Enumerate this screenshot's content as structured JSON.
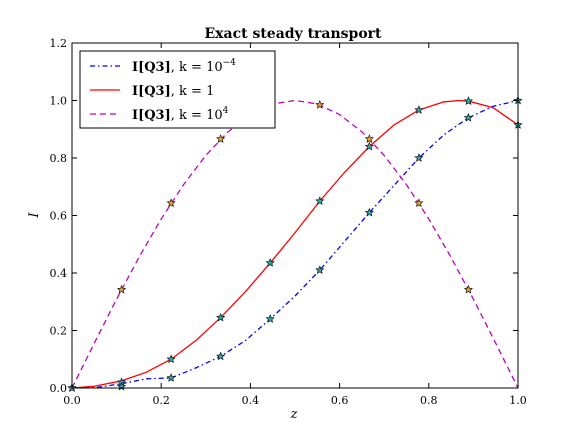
{
  "chart_data": {
    "type": "line",
    "title": "Exact steady transport",
    "xlabel": "z",
    "ylabel": "I",
    "xlim": [
      0.0,
      1.0
    ],
    "ylim": [
      0.0,
      1.2
    ],
    "xticks": [
      "0.0",
      "0.2",
      "0.4",
      "0.6",
      "0.8",
      "1.0"
    ],
    "yticks": [
      "0.0",
      "0.2",
      "0.4",
      "0.6",
      "0.8",
      "1.0",
      "1.2"
    ],
    "legend_position": "top-left",
    "grid": false,
    "series": [
      {
        "name": "I[Q3], k = 10^-4",
        "legend": {
          "bold": "I[Q3]",
          "rest": ", k = 10",
          "sup": "−4"
        },
        "color": "#0000ff",
        "style": "dashdot",
        "x": [
          0.0,
          0.0556,
          0.1111,
          0.1667,
          0.2222,
          0.2778,
          0.3333,
          0.3889,
          0.4444,
          0.5,
          0.5556,
          0.6111,
          0.6667,
          0.7222,
          0.7778,
          0.8333,
          0.8889,
          0.9444,
          1.0
        ],
        "y": [
          0.0,
          0.002,
          0.015,
          0.032,
          0.035,
          0.07,
          0.11,
          0.165,
          0.24,
          0.32,
          0.41,
          0.51,
          0.61,
          0.705,
          0.8,
          0.88,
          0.94,
          0.98,
          1.0
        ]
      },
      {
        "name": "I[Q3], k = 1",
        "legend": {
          "bold": "I[Q3]",
          "rest": ", k = 1",
          "sup": ""
        },
        "color": "#ff0000",
        "style": "solid",
        "x": [
          0.0,
          0.05,
          0.1111,
          0.1667,
          0.2222,
          0.2778,
          0.3333,
          0.3889,
          0.4444,
          0.5,
          0.5556,
          0.6111,
          0.6667,
          0.7222,
          0.7778,
          0.8333,
          0.8667,
          0.8889,
          0.9444,
          1.0
        ],
        "y": [
          0.0,
          0.006,
          0.025,
          0.055,
          0.1,
          0.165,
          0.245,
          0.335,
          0.435,
          0.54,
          0.65,
          0.75,
          0.84,
          0.915,
          0.967,
          0.995,
          1.0,
          0.998,
          0.975,
          0.915
        ]
      },
      {
        "name": "I[Q3], k = 10^4",
        "legend": {
          "bold": "I[Q3]",
          "rest": ", k = 10",
          "sup": "4"
        },
        "color": "#bf00bf",
        "style": "dashed",
        "x": [
          0.0,
          0.05,
          0.1,
          0.15,
          0.2,
          0.25,
          0.3,
          0.35,
          0.4,
          0.45,
          0.5,
          0.55,
          0.6,
          0.65,
          0.7,
          0.75,
          0.8,
          0.85,
          0.9,
          0.95,
          1.0
        ],
        "y": [
          0.0,
          0.156,
          0.309,
          0.454,
          0.588,
          0.707,
          0.809,
          0.891,
          0.951,
          0.988,
          1.0,
          0.988,
          0.951,
          0.891,
          0.809,
          0.707,
          0.588,
          0.454,
          0.309,
          0.156,
          0.0
        ]
      }
    ],
    "markers": [
      {
        "name": "k = 10^4 stars",
        "fill": "#e0a040",
        "x": [
          0.0,
          0.1111,
          0.2222,
          0.3333,
          0.4444,
          0.5556,
          0.6667,
          0.7778,
          0.8889
        ],
        "y": [
          0.0,
          0.342,
          0.643,
          0.866,
          0.985,
          0.985,
          0.866,
          0.643,
          0.342
        ]
      },
      {
        "name": "k = 1 stars",
        "fill": "#2fa4a4",
        "x": [
          0.0,
          0.1111,
          0.2222,
          0.3333,
          0.4444,
          0.5556,
          0.6667,
          0.7778,
          0.8889,
          1.0
        ],
        "y": [
          0.0,
          0.02,
          0.1,
          0.245,
          0.435,
          0.65,
          0.84,
          0.967,
          0.998,
          0.915
        ]
      },
      {
        "name": "k = 10^-4 stars",
        "fill": "#2fa4a4",
        "x": [
          0.1111,
          0.2222,
          0.3333,
          0.4444,
          0.5556,
          0.6667,
          0.7778,
          0.8889,
          1.0
        ],
        "y": [
          0.005,
          0.035,
          0.11,
          0.24,
          0.41,
          0.61,
          0.8,
          0.94,
          1.0
        ]
      }
    ]
  }
}
